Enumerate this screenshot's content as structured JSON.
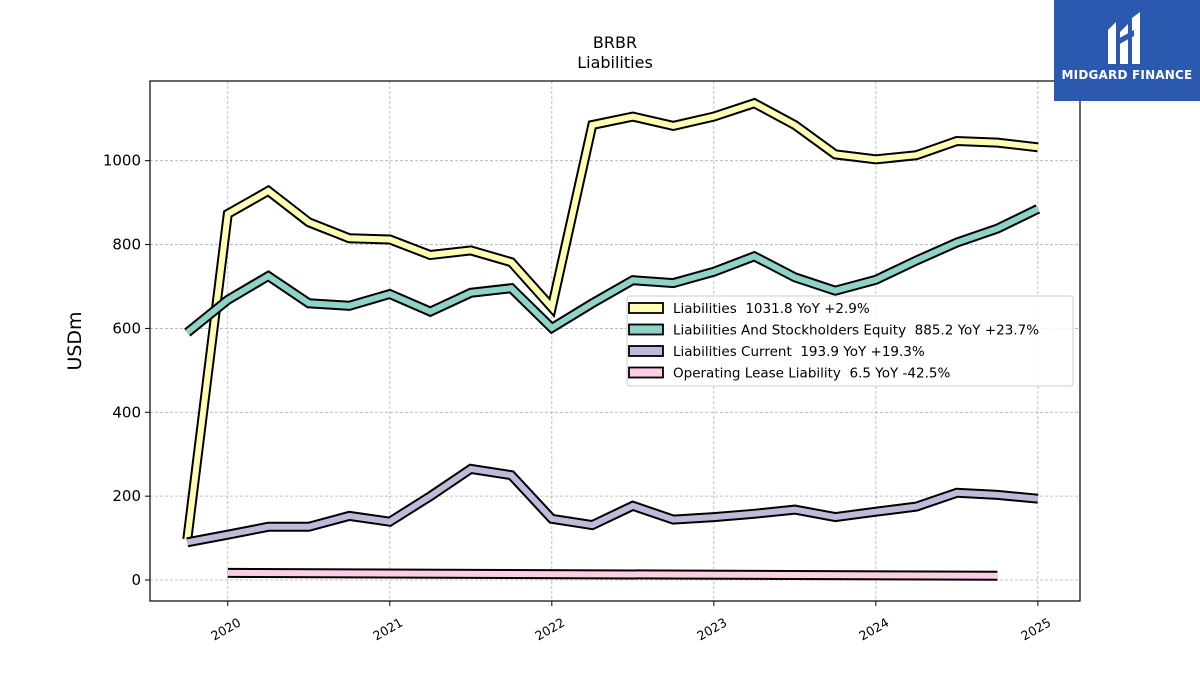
{
  "brand": {
    "name": "MIDGARD FINANCE",
    "bg_color": "#2b59b0"
  },
  "chart_data": {
    "type": "line",
    "title": "BRBR",
    "subtitle": "Liabilities",
    "ylabel": "USDm",
    "xlabel": "",
    "ylim": [
      -50,
      1190
    ],
    "xlim": [
      2019.52,
      2025.26
    ],
    "yticks": [
      0,
      200,
      400,
      600,
      800,
      1000
    ],
    "xticks": [
      2020,
      2021,
      2022,
      2023,
      2024,
      2025
    ],
    "xtick_labels": [
      "2020",
      "2021",
      "2022",
      "2023",
      "2024",
      "2025"
    ],
    "grid": true,
    "legend_position": "center-right",
    "x": [
      2019.75,
      2020.0,
      2020.25,
      2020.5,
      2020.75,
      2021.0,
      2021.25,
      2021.5,
      2021.75,
      2022.0,
      2022.25,
      2022.5,
      2022.75,
      2023.0,
      2023.25,
      2023.5,
      2023.75,
      2024.0,
      2024.25,
      2024.5,
      2024.75,
      2025.0
    ],
    "series": [
      {
        "name": "Liabilities",
        "legend_label": "Liabilities  1031.8 YoY +2.9%",
        "color": "#ffffb3",
        "values": [
          97,
          873,
          928,
          853,
          815,
          812,
          775,
          786,
          758,
          650,
          1085,
          1105,
          1083,
          1105,
          1137,
          1085,
          1015,
          1003,
          1013,
          1047,
          1043,
          1032
        ]
      },
      {
        "name": "Liabilities And Stockholders Equity",
        "legend_label": "Liabilities And Stockholders Equity  885.2 YoY +23.7%",
        "color": "#8dd3c7",
        "values": [
          590,
          668,
          725,
          660,
          654,
          682,
          640,
          685,
          696,
          601,
          660,
          715,
          708,
          735,
          772,
          722,
          690,
          716,
          762,
          805,
          838,
          885
        ]
      },
      {
        "name": "Liabilities Current",
        "legend_label": "Liabilities Current  193.9 YoY +19.3%",
        "color": "#bebada",
        "values": [
          90,
          108,
          127,
          127,
          153,
          139,
          200,
          265,
          250,
          146,
          131,
          177,
          144,
          150,
          158,
          168,
          150,
          163,
          175,
          208,
          203,
          194
        ]
      },
      {
        "name": "Operating Lease Liability",
        "legend_label": "Operating Lease Liability  6.5 YoY -42.5%",
        "color": "#fccde5",
        "x": [
          2020.0,
          2024.75
        ],
        "values": [
          17,
          10
        ]
      }
    ]
  }
}
